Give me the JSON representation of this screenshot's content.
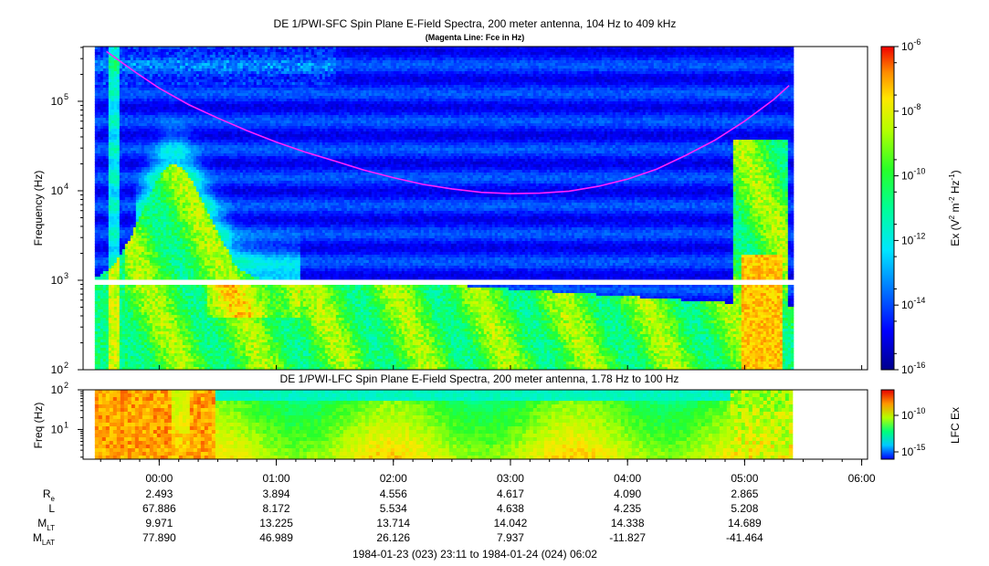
{
  "chart_data": [
    {
      "type": "heatmap",
      "title": "DE 1/PWI-SFC  Spin Plane E-Field Spectra, 200 meter antenna, 104 Hz to 409 kHz",
      "subtitle": "(Magenta Line: Fce in Hz)",
      "ylabel": "Frequency (Hz)",
      "yscale": "log",
      "ylim": [
        100,
        409000
      ],
      "y_ticks": [
        {
          "value": 100,
          "label": "10",
          "sup": "2"
        },
        {
          "value": 1000,
          "label": "10",
          "sup": "3"
        },
        {
          "value": 10000,
          "label": "10",
          "sup": "4"
        },
        {
          "value": 100000,
          "label": "10",
          "sup": "5"
        }
      ],
      "x_range_hours": [
        -0.65,
        6.05
      ],
      "data_extent_hours": [
        -0.55,
        5.4
      ],
      "gap_hz": [
        950,
        1010
      ],
      "magenta_line": {
        "label": "Fce in Hz",
        "color": "#ff22ff",
        "x": [
          -0.45,
          -0.2,
          0.0,
          0.25,
          0.5,
          0.75,
          1.0,
          1.25,
          1.5,
          1.75,
          2.0,
          2.25,
          2.5,
          2.75,
          3.0,
          3.25,
          3.5,
          3.75,
          4.0,
          4.25,
          4.5,
          4.75,
          5.0,
          5.25,
          5.38
        ],
        "y": [
          360000,
          210000,
          140000,
          92000,
          65000,
          47000,
          35000,
          27000,
          21500,
          17000,
          14000,
          11800,
          10500,
          9600,
          9300,
          9400,
          9900,
          11200,
          13500,
          17500,
          25000,
          37000,
          60000,
          105000,
          150000
        ]
      },
      "colorbar": {
        "label": "Ex (V",
        "label_sup": "2",
        "label_mid": " m",
        "label_sup2": "-2",
        "label_mid2": " Hz",
        "label_sup3": "-1",
        "label_end": ")",
        "range": [
          1e-16,
          1e-06
        ],
        "ticks": [
          {
            "label": "10",
            "sup": "-6"
          },
          {
            "label": "10",
            "sup": "-8"
          },
          {
            "label": "10",
            "sup": "-10"
          },
          {
            "label": "10",
            "sup": "-12"
          },
          {
            "label": "10",
            "sup": "-14"
          },
          {
            "label": "10",
            "sup": "-16"
          }
        ]
      }
    },
    {
      "type": "heatmap",
      "title": "DE 1/PWI-LFC  Spin Plane E-Field Spectra, 200 meter antenna, 1.78 Hz to 100 Hz",
      "ylabel": "Freq (Hz)",
      "yscale": "log",
      "ylim": [
        1.78,
        100
      ],
      "y_ticks": [
        {
          "value": 100,
          "label": "10",
          "sup": "2"
        },
        {
          "value": 10,
          "label": "10",
          "sup": "1"
        }
      ],
      "colorbar": {
        "label": "LFC Ex",
        "ticks": [
          {
            "label": "10",
            "sup": "-10"
          },
          {
            "label": "10",
            "sup": "-15"
          }
        ]
      }
    }
  ],
  "x_axis": {
    "ticks": [
      {
        "hour": 0,
        "label": "00:00"
      },
      {
        "hour": 1,
        "label": "01:00"
      },
      {
        "hour": 2,
        "label": "02:00"
      },
      {
        "hour": 3,
        "label": "03:00"
      },
      {
        "hour": 4,
        "label": "04:00"
      },
      {
        "hour": 5,
        "label": "05:00"
      },
      {
        "hour": 6,
        "label": "06:00"
      }
    ],
    "time_range_label": "1984-01-23 (023) 23:11 to 1984-01-24 (024) 06:02"
  },
  "ephemeris": [
    {
      "label": "R",
      "sub": "e",
      "values": [
        "2.493",
        "3.894",
        "4.556",
        "4.617",
        "4.090",
        "2.865"
      ]
    },
    {
      "label": "L",
      "sub": "",
      "values": [
        "67.886",
        "8.172",
        "5.534",
        "4.638",
        "4.235",
        "5.208"
      ]
    },
    {
      "label": "M",
      "sub": "LT",
      "values": [
        "9.971",
        "13.225",
        "13.714",
        "14.042",
        "14.338",
        "14.689"
      ]
    },
    {
      "label": "M",
      "sub": "LAT",
      "values": [
        "77.890",
        "46.989",
        "26.126",
        "7.937",
        "-11.827",
        "-41.464"
      ]
    }
  ]
}
